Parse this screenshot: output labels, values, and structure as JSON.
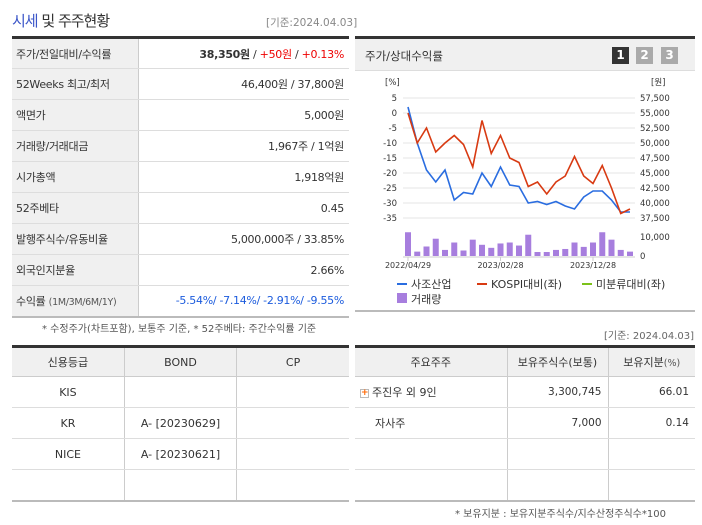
{
  "header": {
    "title_highlight": "시세",
    "title_rest": " 및 주주현황",
    "date": "[기준:2024.04.03]"
  },
  "price_table": [
    {
      "label": "주가/전일대비/수익률",
      "price": "38,350원",
      "sep": " / ",
      "change": "+50원",
      "sep2": " / ",
      "pct": "+0.13%"
    },
    {
      "label": "52Weeks 최고/최저",
      "value": "46,400원 / 37,800원"
    },
    {
      "label": "액면가",
      "value": "5,000원"
    },
    {
      "label": "거래량/거래대금",
      "value": "1,967주 / 1억원"
    },
    {
      "label": "시가총액",
      "value": "1,918억원"
    },
    {
      "label": "52주베타",
      "value": "0.45"
    },
    {
      "label": "발행주식수/유동비율",
      "value": "5,000,000주 / 33.85%"
    },
    {
      "label": "외국인지분율",
      "value": "2.66%"
    },
    {
      "label": "수익률",
      "label_sub": "(1M/3M/6M/1Y)",
      "value": "-5.54%/ -7.14%/ -2.91%/ -9.55%"
    }
  ],
  "note1": "* 수정주가(차트포함), 보통주 기준, * 52주베타: 주간수익률 기준",
  "chart_panel": {
    "title": "주가/상대수익률",
    "tabs": [
      "1",
      "2",
      "3"
    ],
    "active_tab": "1"
  },
  "chart_data": {
    "type": "line",
    "left_unit": "[%]",
    "right_unit": "[원]",
    "left_ticks": [
      "5",
      "0",
      "-5",
      "-10",
      "-15",
      "-20",
      "-25",
      "-30",
      "-35"
    ],
    "right_ticks": [
      "57,500",
      "55,000",
      "52,500",
      "50,000",
      "47,500",
      "45,000",
      "42,500",
      "40,000",
      "37,500"
    ],
    "ylim_left": [
      -35,
      5
    ],
    "volume_ticks": [
      "10,000",
      "0"
    ],
    "volume_lim": [
      0,
      12500
    ],
    "x_labels": [
      "2022/04/29",
      "2023/02/28",
      "2023/12/28"
    ],
    "series": [
      {
        "name": "사조산업",
        "color": "#2a6de0",
        "values": [
          2,
          -10,
          -19,
          -23,
          -19,
          -29,
          -26.5,
          -27,
          -20,
          -24.5,
          -18,
          -24,
          -24.5,
          -30,
          -29.5,
          -30.5,
          -29.5,
          -31,
          -32,
          -28,
          -26,
          -26,
          -29,
          -33,
          -33
        ]
      },
      {
        "name": "KOSPI대비(좌)",
        "color": "#d83a12",
        "values": [
          0,
          -10,
          -5,
          -13,
          -10,
          -7.5,
          -10.5,
          -18,
          -2.5,
          -13.5,
          -7.5,
          -15,
          -16.5,
          -24.5,
          -23,
          -27,
          -23,
          -21,
          -14.5,
          -21,
          -23.5,
          -17.5,
          -25,
          -33.5,
          -32
        ]
      },
      {
        "name": "미분류대비(좌)",
        "color": "#7cc21a",
        "values": []
      }
    ],
    "volume": {
      "name": "거래량",
      "color": "#a77ede",
      "values": [
        12500,
        2300,
        5000,
        9100,
        3200,
        7100,
        2900,
        8600,
        5900,
        4300,
        6600,
        7100,
        5500,
        11200,
        2100,
        2100,
        3200,
        3700,
        7100,
        4800,
        7100,
        12500,
        8600,
        3200,
        2300
      ]
    }
  },
  "date2": "[기준: 2024.04.03]",
  "credit": {
    "headers": [
      "신용등급",
      "BOND",
      "CP"
    ],
    "rows": [
      [
        "KIS",
        "",
        ""
      ],
      [
        "KR",
        "A-  [20230629]",
        ""
      ],
      [
        "NICE",
        "A-  [20230621]",
        ""
      ],
      [
        "",
        "",
        ""
      ]
    ]
  },
  "holders": {
    "headers": [
      "주요주주",
      "보유주식수(보통)",
      "보유지분"
    ],
    "header_unit": "(%)",
    "rows": [
      [
        "주진우 외 9인",
        "3,300,745",
        "66.01"
      ],
      [
        "자사주",
        "7,000",
        "0.14"
      ],
      [
        "",
        "",
        ""
      ],
      [
        "",
        "",
        ""
      ]
    ]
  },
  "note2": "* 보유지분 : 보유지분주식수/지수산정주식수*100"
}
